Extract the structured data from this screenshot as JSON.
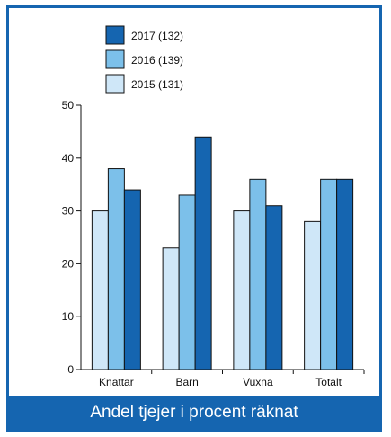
{
  "caption": "Andel tjejer i procent räknat",
  "chart_data": {
    "type": "bar",
    "categories": [
      "Knattar",
      "Barn",
      "Vuxna",
      "Totalt"
    ],
    "series": [
      {
        "name": "2015 (131)",
        "color": "#cfe7f8",
        "values": [
          30,
          23,
          30,
          28
        ]
      },
      {
        "name": "2016 (139)",
        "color": "#7cc0ea",
        "values": [
          38,
          33,
          36,
          36
        ]
      },
      {
        "name": "2017 (132)",
        "color": "#1565b0",
        "values": [
          34,
          44,
          31,
          36
        ]
      }
    ],
    "legend_order": [
      "2017 (132)",
      "2016 (139)",
      "2015 (131)"
    ],
    "ylim": [
      0,
      50
    ],
    "yticks": [
      0,
      10,
      20,
      30,
      40,
      50
    ],
    "legend_position": "top-left",
    "grid": false
  }
}
